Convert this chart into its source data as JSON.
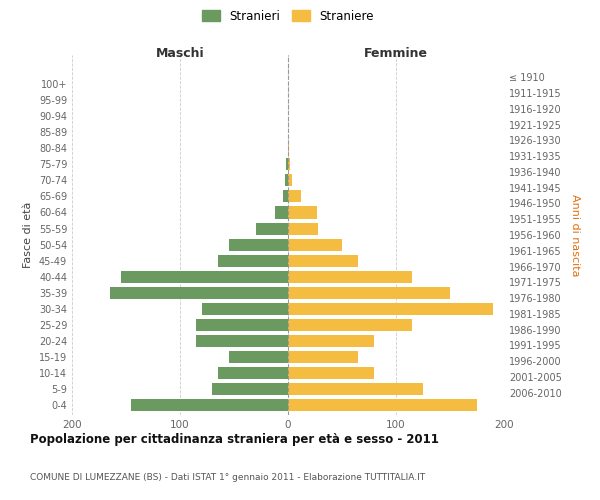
{
  "age_groups": [
    "0-4",
    "5-9",
    "10-14",
    "15-19",
    "20-24",
    "25-29",
    "30-34",
    "35-39",
    "40-44",
    "45-49",
    "50-54",
    "55-59",
    "60-64",
    "65-69",
    "70-74",
    "75-79",
    "80-84",
    "85-89",
    "90-94",
    "95-99",
    "100+"
  ],
  "birth_years": [
    "2006-2010",
    "2001-2005",
    "1996-2000",
    "1991-1995",
    "1986-1990",
    "1981-1985",
    "1976-1980",
    "1971-1975",
    "1966-1970",
    "1961-1965",
    "1956-1960",
    "1951-1955",
    "1946-1950",
    "1941-1945",
    "1936-1940",
    "1931-1935",
    "1926-1930",
    "1921-1925",
    "1916-1920",
    "1911-1915",
    "≤ 1910"
  ],
  "maschi": [
    145,
    70,
    65,
    55,
    85,
    85,
    80,
    165,
    155,
    65,
    55,
    30,
    12,
    5,
    3,
    2,
    0,
    0,
    0,
    0,
    0
  ],
  "femmine": [
    175,
    125,
    80,
    65,
    80,
    115,
    190,
    150,
    115,
    65,
    50,
    28,
    27,
    12,
    4,
    2,
    1,
    0,
    0,
    0,
    0
  ],
  "maschi_color": "#6a9a5f",
  "femmine_color": "#f5bc42",
  "background_color": "#ffffff",
  "grid_color": "#cccccc",
  "title": "Popolazione per cittadinanza straniera per età e sesso - 2011",
  "subtitle": "COMUNE DI LUMEZZANE (BS) - Dati ISTAT 1° gennaio 2011 - Elaborazione TUTTITALIA.IT",
  "xlabel_left": "Maschi",
  "xlabel_right": "Femmine",
  "ylabel_left": "Fasce di età",
  "ylabel_right": "Anni di nascita",
  "legend_maschi": "Stranieri",
  "legend_femmine": "Straniere",
  "xlim": 200,
  "bar_height": 0.75
}
